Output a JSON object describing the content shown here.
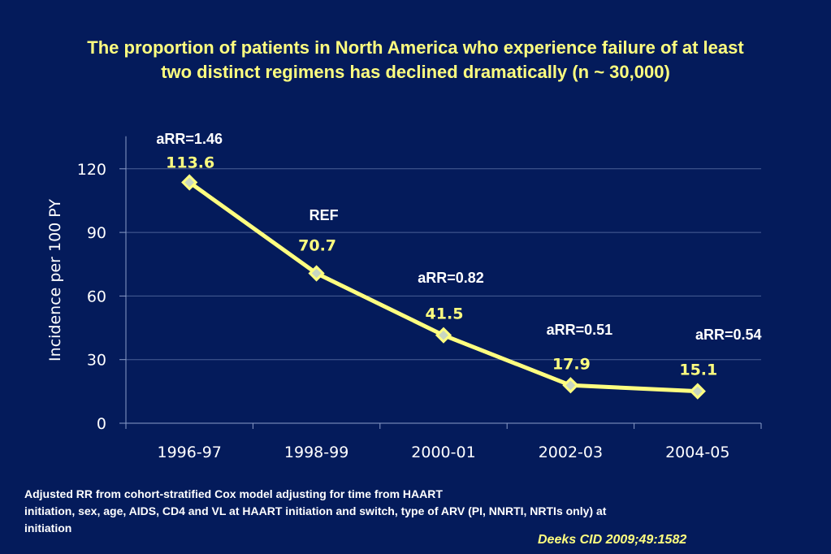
{
  "slide": {
    "title_lines": [
      "The proportion of patients in North America who experience failure of at least",
      "two distinct regimens has declined dramatically (n ~ 30,000)"
    ],
    "footnote_lines": [
      "Adjusted RR from cohort-stratified Cox model adjusting for time from HAART",
      "initiation, sex, age, AIDS, CD4 and VL at HAART initiation and switch, type of ARV (PI, NNRTI, NRTIs only) at",
      "initiation"
    ],
    "citation": "Deeks CID 2009;49:1582"
  },
  "colors": {
    "background": "#041b5b",
    "line": "#ffff80",
    "title": "#ffff7f",
    "text": "#ffffff",
    "gridline": "#4a5f96"
  },
  "chart_data": {
    "type": "line",
    "title": "The proportion of patients in North America who experience failure of at least two distinct regimens has declined dramatically (n ~ 30,000)",
    "xlabel": "",
    "ylabel": "Incidence per 100 PY",
    "categories": [
      "1996-97",
      "1998-99",
      "2000-01",
      "2002-03",
      "2004-05"
    ],
    "series": [
      {
        "name": "Incidence per 100 PY",
        "values": [
          113.6,
          70.7,
          41.5,
          17.9,
          15.1
        ]
      }
    ],
    "data_labels": [
      "113.6",
      "70.7",
      "41.5",
      "17.9",
      "15.1"
    ],
    "annotations": [
      "aRR=1.46",
      "REF",
      "aRR=0.82",
      "aRR=0.51",
      "aRR=0.54"
    ],
    "ylim": [
      0,
      130
    ],
    "yticks": [
      0,
      30,
      60,
      90,
      120
    ],
    "grid": true,
    "legend": "none"
  }
}
